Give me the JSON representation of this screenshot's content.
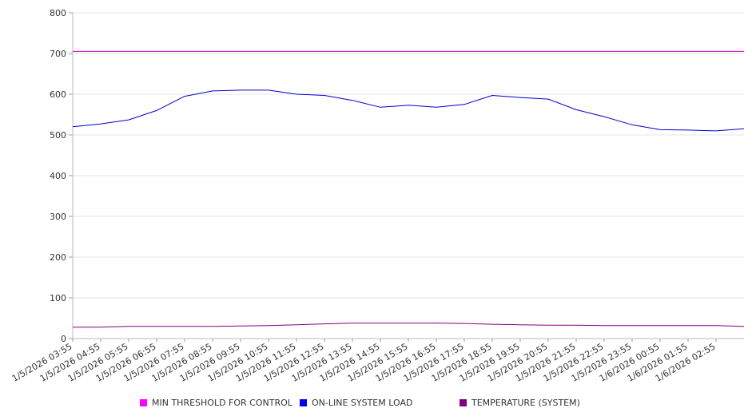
{
  "chart_data": {
    "type": "line",
    "title": "",
    "xlabel": "",
    "ylabel": "",
    "ylim": [
      0,
      800
    ],
    "y_ticks": [
      "0",
      "100",
      "200",
      "300",
      "400",
      "500",
      "600",
      "700",
      "800"
    ],
    "x_tick_labels": [
      "1/5/2026 03:55",
      "1/5/2026 04:55",
      "1/5/2026 05:55",
      "1/5/2026 06:55",
      "1/5/2026 07:55",
      "1/5/2026 08:55",
      "1/5/2026 09:55",
      "1/5/2026 10:55",
      "1/5/2026 11:55",
      "1/5/2026 12:55",
      "1/5/2026 13:55",
      "1/5/2026 14:55",
      "1/5/2026 15:55",
      "1/5/2026 16:55",
      "1/5/2026 17:55",
      "1/5/2026 18:55",
      "1/5/2026 19:55",
      "1/5/2026 20:55",
      "1/5/2026 21:55",
      "1/5/2026 22:55",
      "1/5/2026 23:55",
      "1/6/2026 00:55",
      "1/6/2026 01:55",
      "1/6/2026 02:55"
    ],
    "grid": true,
    "legend_position": "bottom",
    "series": [
      {
        "name": "MIN THRESHOLD FOR CONTROL",
        "color": "#cc00cc",
        "values": [
          705,
          705,
          705,
          705,
          705,
          705,
          705,
          705,
          705,
          705,
          705,
          705,
          705,
          705,
          705,
          705,
          705,
          705,
          705,
          705,
          705,
          705,
          705,
          705,
          705
        ]
      },
      {
        "name": "ON-LINE SYSTEM LOAD",
        "color": "#0000cc",
        "values": [
          520,
          527,
          537,
          560,
          595,
          608,
          610,
          610,
          600,
          597,
          585,
          568,
          573,
          568,
          575,
          597,
          592,
          588,
          562,
          545,
          525,
          513,
          512,
          510,
          515
        ]
      },
      {
        "name": "TEMPERATURE (SYSTEM)",
        "color": "#800080",
        "values": [
          28,
          28,
          30,
          30,
          30,
          30,
          31,
          32,
          34,
          36,
          38,
          38,
          38,
          38,
          37,
          35,
          34,
          33,
          33,
          32,
          32,
          32,
          32,
          32,
          30
        ]
      }
    ]
  }
}
